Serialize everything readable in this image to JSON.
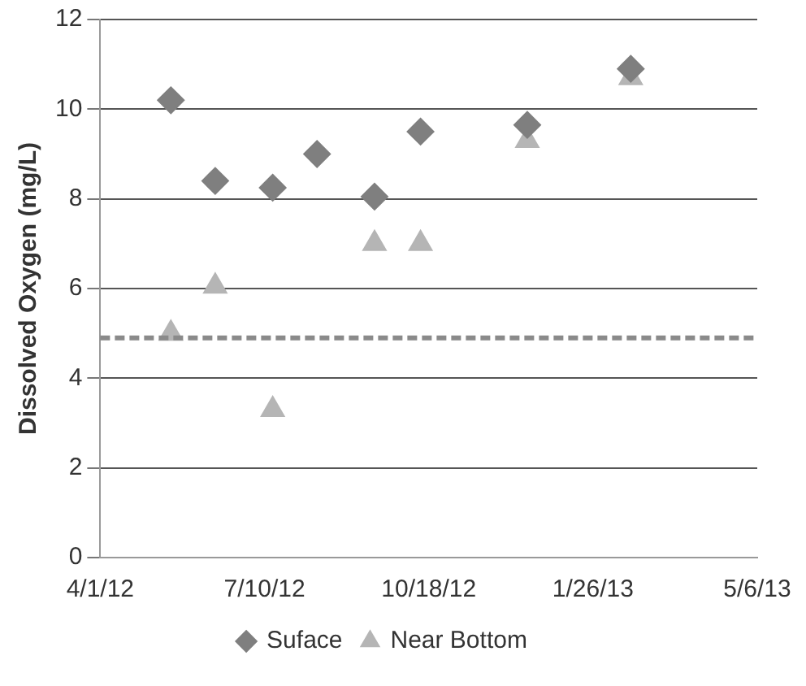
{
  "chart_data": {
    "type": "scatter",
    "ylabel": "Dissolved Oxygen (mg/L)",
    "xlim": [
      "2012-04-01",
      "2013-05-06"
    ],
    "xticks": [
      {
        "value": "2012-04-01",
        "label": "4/1/12"
      },
      {
        "value": "2012-07-10",
        "label": "7/10/12"
      },
      {
        "value": "2012-10-18",
        "label": "10/18/12"
      },
      {
        "value": "2013-01-26",
        "label": "1/26/13"
      },
      {
        "value": "2013-05-06",
        "label": "5/6/13"
      }
    ],
    "ylim": [
      0,
      12
    ],
    "yticks": [
      0,
      2,
      4,
      6,
      8,
      10,
      12
    ],
    "grid": "y",
    "legend": "bottom",
    "ref_lines": [
      {
        "axis": "y",
        "value": 4.9,
        "color": "#8a8a8a",
        "line_style": "dashed"
      }
    ],
    "series": [
      {
        "name": "Suface",
        "color": "#7f7f7f",
        "marker": "diamond",
        "x": [
          "2012-05-14",
          "2012-06-10",
          "2012-07-15",
          "2012-08-11",
          "2012-09-15",
          "2012-10-13",
          "2012-12-17",
          "2013-02-18"
        ],
        "values": [
          10.2,
          8.4,
          8.25,
          9.0,
          8.05,
          9.5,
          9.65,
          10.9
        ]
      },
      {
        "name": "Near Bottom",
        "color": "#b5b5b5",
        "marker": "triangle",
        "x": [
          "2012-05-14",
          "2012-06-10",
          "2012-07-15",
          "2012-09-15",
          "2012-10-13",
          "2012-12-17",
          "2013-02-18"
        ],
        "values": [
          5.0,
          6.05,
          3.3,
          7.0,
          7.0,
          9.3,
          10.7
        ]
      }
    ]
  }
}
